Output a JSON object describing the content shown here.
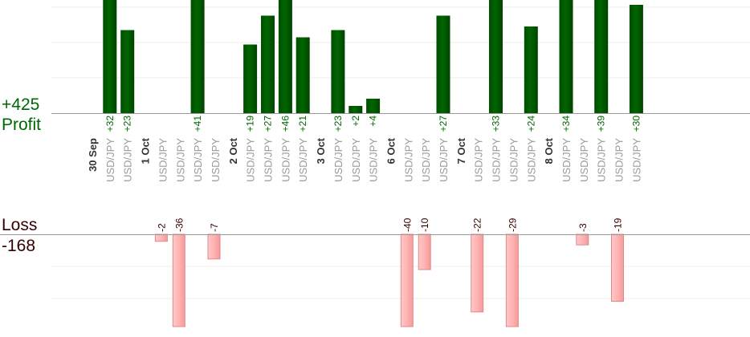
{
  "labels": {
    "profit_total": "+425",
    "profit_word": "Profit",
    "loss_word": "Loss",
    "loss_total": "-168"
  },
  "colors": {
    "profit_bar": "#006600",
    "profit_text": "#006600",
    "loss_bar": "#ffb3b3",
    "loss_bar_border": "#e08a8a",
    "loss_text": "#330000",
    "date_text": "#333333",
    "pair_text": "#999999"
  },
  "chart_data": {
    "type": "bar",
    "title": "",
    "xlabel": "",
    "ylabel": "",
    "profit_ylim": [
      0,
      32
    ],
    "loss_ylim": [
      0,
      26
    ],
    "grid": true,
    "columns": [
      {
        "label": "30 Sep",
        "kind": "date"
      },
      {
        "label": "USD/JPY",
        "kind": "trade",
        "value": 32,
        "value_label": "+32"
      },
      {
        "label": "USD/JPY",
        "kind": "trade",
        "value": 23,
        "value_label": "+23"
      },
      {
        "label": "1 Oct",
        "kind": "date"
      },
      {
        "label": "USD/JPY",
        "kind": "trade",
        "value": -2,
        "value_label": "-2"
      },
      {
        "label": "USD/JPY",
        "kind": "trade",
        "value": -36,
        "value_label": "-36"
      },
      {
        "label": "USD/JPY",
        "kind": "trade",
        "value": 41,
        "value_label": "+41"
      },
      {
        "label": "USD/JPY",
        "kind": "trade",
        "value": -7,
        "value_label": "-7"
      },
      {
        "label": "2 Oct",
        "kind": "date"
      },
      {
        "label": "USD/JPY",
        "kind": "trade",
        "value": 19,
        "value_label": "+19"
      },
      {
        "label": "USD/JPY",
        "kind": "trade",
        "value": 27,
        "value_label": "+27"
      },
      {
        "label": "USD/JPY",
        "kind": "trade",
        "value": 46,
        "value_label": "+46"
      },
      {
        "label": "USD/JPY",
        "kind": "trade",
        "value": 21,
        "value_label": "+21"
      },
      {
        "label": "3 Oct",
        "kind": "date"
      },
      {
        "label": "USD/JPY",
        "kind": "trade",
        "value": 23,
        "value_label": "+23"
      },
      {
        "label": "USD/JPY",
        "kind": "trade",
        "value": 2,
        "value_label": "+2"
      },
      {
        "label": "USD/JPY",
        "kind": "trade",
        "value": 4,
        "value_label": "+4"
      },
      {
        "label": "6 Oct",
        "kind": "date"
      },
      {
        "label": "USD/JPY",
        "kind": "trade",
        "value": -40,
        "value_label": "-40"
      },
      {
        "label": "USD/JPY",
        "kind": "trade",
        "value": -10,
        "value_label": "-10"
      },
      {
        "label": "USD/JPY",
        "kind": "trade",
        "value": 27,
        "value_label": "+27"
      },
      {
        "label": "7 Oct",
        "kind": "date"
      },
      {
        "label": "USD/JPY",
        "kind": "trade",
        "value": -22,
        "value_label": "-22"
      },
      {
        "label": "USD/JPY",
        "kind": "trade",
        "value": 33,
        "value_label": "+33"
      },
      {
        "label": "USD/JPY",
        "kind": "trade",
        "value": -29,
        "value_label": "-29"
      },
      {
        "label": "USD/JPY",
        "kind": "trade",
        "value": 24,
        "value_label": "+24"
      },
      {
        "label": "8 Oct",
        "kind": "date"
      },
      {
        "label": "USD/JPY",
        "kind": "trade",
        "value": 34,
        "value_label": "+34"
      },
      {
        "label": "USD/JPY",
        "kind": "trade",
        "value": -3,
        "value_label": "-3"
      },
      {
        "label": "USD/JPY",
        "kind": "trade",
        "value": 39,
        "value_label": "+39"
      },
      {
        "label": "USD/JPY",
        "kind": "trade",
        "value": -19,
        "value_label": "-19"
      },
      {
        "label": "USD/JPY",
        "kind": "trade",
        "value": 30,
        "value_label": "+30"
      }
    ]
  }
}
